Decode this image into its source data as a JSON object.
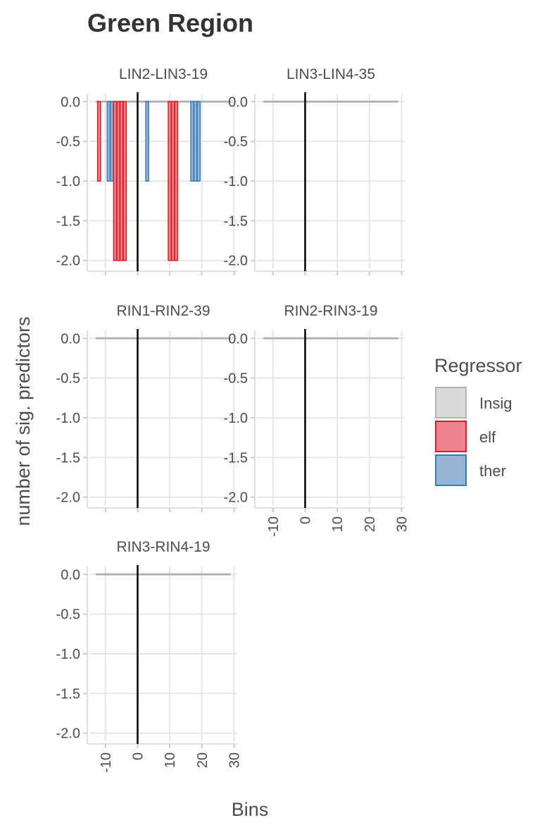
{
  "chart_data": {
    "type": "bar",
    "title": "Green Region",
    "xlabel": "Bins",
    "ylabel": "number of sig. predictors",
    "xlim": [
      -15,
      31
    ],
    "ylim": [
      -2.1,
      0.1
    ],
    "x_ticks": [
      -10,
      0,
      10,
      20,
      30
    ],
    "x_tick_labels": [
      "-10",
      "0",
      "10",
      "20",
      "30"
    ],
    "y_ticks": [
      0.0,
      -0.5,
      -1.0,
      -1.5,
      -2.0
    ],
    "y_tick_labels": [
      "0.0",
      "-0.5",
      "-1.0",
      "-1.5",
      "-2.0"
    ],
    "vline_x": 0,
    "bar_width": 0.9,
    "grid": true,
    "legend": {
      "title": "Regressor",
      "position": "right",
      "entries": [
        {
          "label": "Insig",
          "fill": "#d9d9d9",
          "stroke": "#b3b3b3"
        },
        {
          "label": "elf",
          "fill": "#ee8390",
          "stroke": "#e41a1c"
        },
        {
          "label": "ther",
          "fill": "#98b4d5",
          "stroke": "#377eb8"
        }
      ]
    },
    "colors": {
      "Insig": {
        "fill": "#d9d9d9",
        "stroke": "#b3b3b3"
      },
      "elf": {
        "fill": "#ee8390",
        "stroke": "#e41a1c"
      },
      "ther": {
        "fill": "#98b4d5",
        "stroke": "#377eb8"
      }
    },
    "panels": [
      {
        "title": "LIN2-LIN3-19",
        "x_range": [
          -13,
          29
        ],
        "bars": [
          {
            "x": -12,
            "y": -1,
            "regressor": "elf"
          },
          {
            "x": -9,
            "y": -1,
            "regressor": "ther"
          },
          {
            "x": -8,
            "y": -1,
            "regressor": "ther"
          },
          {
            "x": -7,
            "y": -2,
            "regressor": "elf"
          },
          {
            "x": -6,
            "y": -2,
            "regressor": "elf"
          },
          {
            "x": -5,
            "y": -2,
            "regressor": "elf"
          },
          {
            "x": -4,
            "y": -2,
            "regressor": "elf"
          },
          {
            "x": 3,
            "y": -1,
            "regressor": "ther"
          },
          {
            "x": 10,
            "y": -2,
            "regressor": "elf"
          },
          {
            "x": 11,
            "y": -2,
            "regressor": "elf"
          },
          {
            "x": 12,
            "y": -2,
            "regressor": "elf"
          },
          {
            "x": 17,
            "y": -1,
            "regressor": "ther"
          },
          {
            "x": 18,
            "y": -1,
            "regressor": "ther"
          },
          {
            "x": 19,
            "y": -1,
            "regressor": "ther"
          }
        ]
      },
      {
        "title": "LIN3-LIN4-35",
        "x_range": [
          -13,
          29
        ],
        "bars": []
      },
      {
        "title": "RIN1-RIN2-39",
        "x_range": [
          -13,
          29
        ],
        "bars": []
      },
      {
        "title": "RIN2-RIN3-19",
        "x_range": [
          -13,
          29
        ],
        "bars": []
      },
      {
        "title": "RIN3-RIN4-19",
        "x_range": [
          -13,
          29
        ],
        "bars": []
      }
    ]
  }
}
